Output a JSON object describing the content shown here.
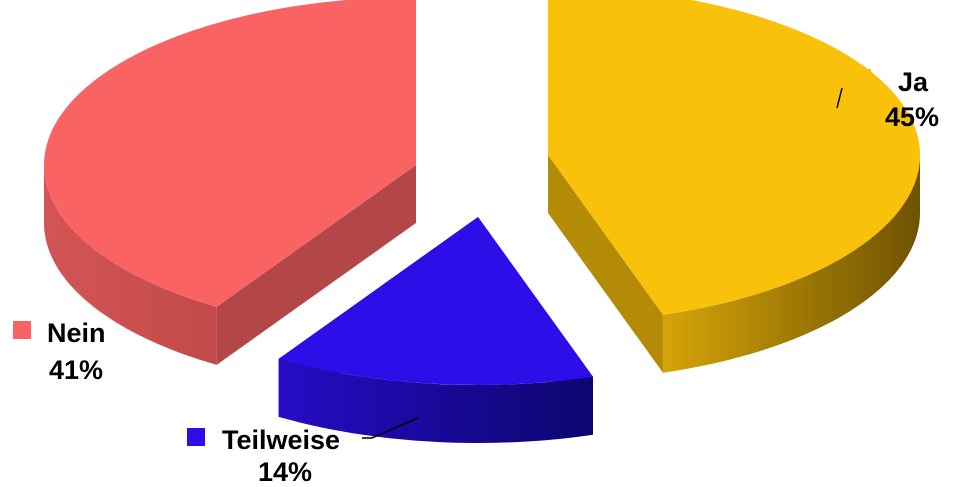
{
  "chart_data": {
    "type": "pie",
    "title": "",
    "exploded": true,
    "three_d": true,
    "slices": [
      {
        "name": "Ja",
        "value": 45,
        "percent_label": "45%",
        "color": "#FAC10A",
        "side_color": "#6E5201"
      },
      {
        "name": "Teilweise",
        "value": 14,
        "percent_label": "14%",
        "color": "#2D0EE8",
        "side_color": "#0D056E"
      },
      {
        "name": "Nein",
        "value": 41,
        "percent_label": "41%",
        "color": "#F96363",
        "side_color": "#C24A4A"
      }
    ]
  }
}
